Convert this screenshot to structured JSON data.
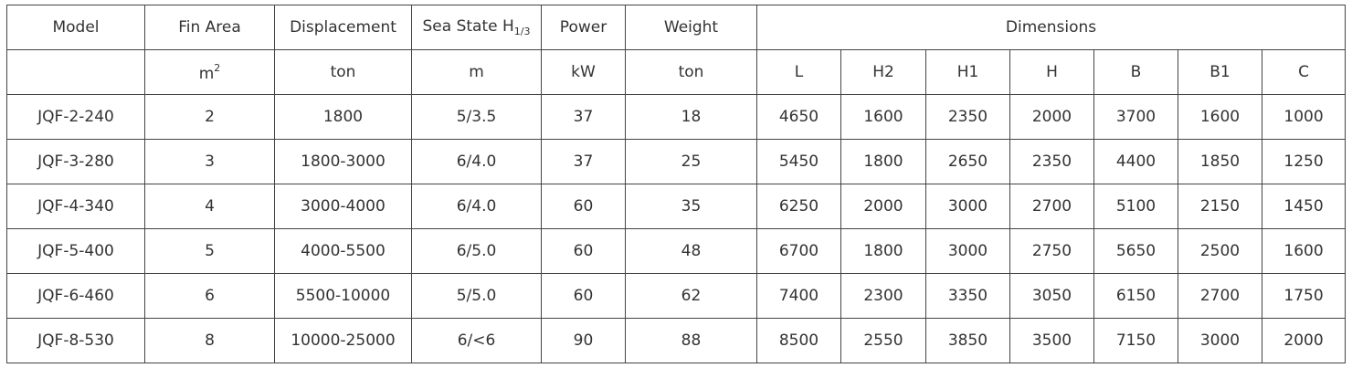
{
  "header": {
    "model": "Model",
    "fin_area": "Fin Area",
    "displacement": "Displacement",
    "sea_state": "Sea State H",
    "sea_state_sub": "1/3",
    "power": "Power",
    "weight": "Weight",
    "dimensions": "Dimensions"
  },
  "units": {
    "model": "",
    "fin_area": "m",
    "fin_area_sup": "2",
    "displacement": "ton",
    "sea_state": "m",
    "power": "kW",
    "weight": "ton",
    "dims": [
      "L",
      "H2",
      "H1",
      "H",
      "B",
      "B1",
      "C"
    ]
  },
  "rows": [
    [
      "JQF-2-240",
      "2",
      "1800",
      "5/3.5",
      "37",
      "18",
      "4650",
      "1600",
      "2350",
      "2000",
      "3700",
      "1600",
      "1000"
    ],
    [
      "JQF-3-280",
      "3",
      "1800-3000",
      "6/4.0",
      "37",
      "25",
      "5450",
      "1800",
      "2650",
      "2350",
      "4400",
      "1850",
      "1250"
    ],
    [
      "JQF-4-340",
      "4",
      "3000-4000",
      "6/4.0",
      "60",
      "35",
      "6250",
      "2000",
      "3000",
      "2700",
      "5100",
      "2150",
      "1450"
    ],
    [
      "JQF-5-400",
      "5",
      "4000-5500",
      "6/5.0",
      "60",
      "48",
      "6700",
      "1800",
      "3000",
      "2750",
      "5650",
      "2500",
      "1600"
    ],
    [
      "JQF-6-460",
      "6",
      "5500-10000",
      "5/5.0",
      "60",
      "62",
      "7400",
      "2300",
      "3350",
      "3050",
      "6150",
      "2700",
      "1750"
    ],
    [
      "JQF-8-530",
      "8",
      "10000-25000",
      "6/<6",
      "90",
      "88",
      "8500",
      "2550",
      "3850",
      "3500",
      "7150",
      "3000",
      "2000"
    ]
  ]
}
